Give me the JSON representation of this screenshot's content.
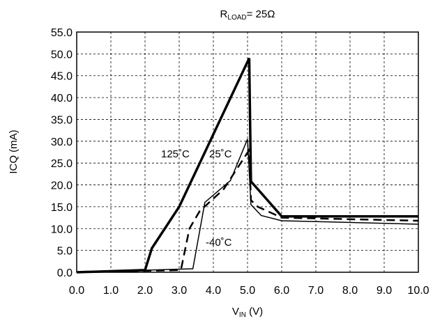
{
  "chart_data": {
    "type": "line",
    "title": {
      "main": "R",
      "sub": "LOAD",
      "rest": "= 25Ω"
    },
    "xlabel": {
      "main": "V",
      "sub": "IN",
      "rest": " (V)"
    },
    "ylabel": "ICQ (mA)",
    "xlim": [
      0,
      10
    ],
    "ylim": [
      0,
      55
    ],
    "x_ticks": [
      "0.0",
      "1.0",
      "2.0",
      "3.0",
      "4.0",
      "5.0",
      "6.0",
      "7.0",
      "8.0",
      "9.0",
      "10.0"
    ],
    "y_ticks": [
      "0.0",
      "5.0",
      "10.0",
      "15.0",
      "20.0",
      "25.0",
      "30.0",
      "35.0",
      "40.0",
      "45.0",
      "50.0",
      "55.0"
    ],
    "grid": true,
    "series": [
      {
        "name": "125˚C",
        "style": "thick",
        "points": [
          [
            0,
            0
          ],
          [
            2.0,
            0.5
          ],
          [
            2.2,
            5.5
          ],
          [
            3.0,
            15.0
          ],
          [
            5.05,
            49.0
          ],
          [
            5.1,
            20.8
          ],
          [
            6.0,
            12.8
          ],
          [
            10.0,
            12.8
          ]
        ]
      },
      {
        "name": "25˚C",
        "style": "dashed",
        "points": [
          [
            0,
            0
          ],
          [
            3.05,
            0.5
          ],
          [
            3.3,
            10.0
          ],
          [
            3.6,
            14.0
          ],
          [
            4.3,
            19.0
          ],
          [
            5.05,
            28.0
          ],
          [
            5.1,
            16.5
          ],
          [
            5.3,
            15.0
          ],
          [
            6.0,
            12.5
          ],
          [
            10.0,
            11.8
          ]
        ]
      },
      {
        "name": "-40˚C",
        "style": "thin",
        "points": [
          [
            0,
            0
          ],
          [
            3.4,
            0.8
          ],
          [
            3.75,
            16.0
          ],
          [
            4.5,
            21.0
          ],
          [
            5.0,
            30.5
          ],
          [
            5.1,
            15.5
          ],
          [
            5.4,
            13.0
          ],
          [
            6.0,
            11.8
          ],
          [
            10.0,
            11.0
          ]
        ]
      }
    ],
    "annotations": [
      "125˚C",
      "25˚C",
      "-40˚C"
    ]
  }
}
